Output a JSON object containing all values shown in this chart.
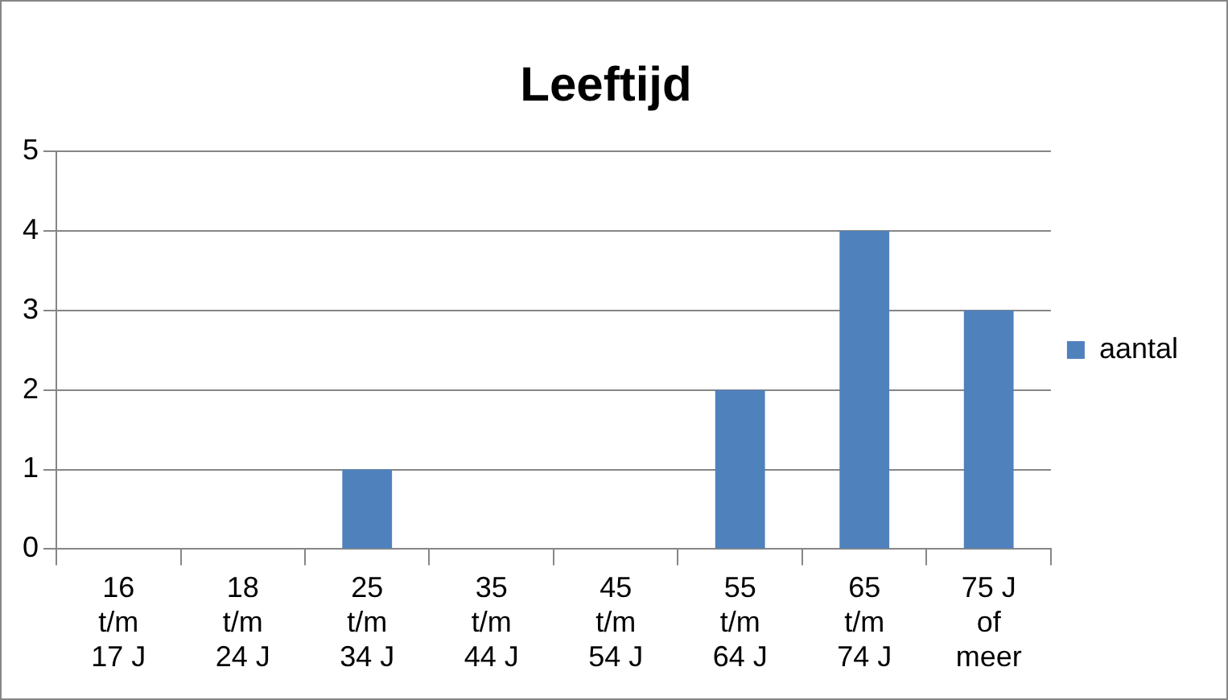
{
  "chart_data": {
    "type": "bar",
    "title": "Leeftijd",
    "categories": [
      "16 t/m 17 J",
      "18 t/m 24 J",
      "25 t/m 34 J",
      "35 t/m 44 J",
      "45 t/m 54 J",
      "55 t/m 64 J",
      "65 t/m 74 J",
      "75 J of meer"
    ],
    "series": [
      {
        "name": "aantal",
        "color": "#4f81bd",
        "values": [
          0,
          0,
          1,
          0,
          0,
          2,
          4,
          3
        ]
      }
    ],
    "ylim": [
      0,
      5
    ],
    "yticks": [
      0,
      1,
      2,
      3,
      4,
      5
    ],
    "grid": "y",
    "legend": "right"
  }
}
